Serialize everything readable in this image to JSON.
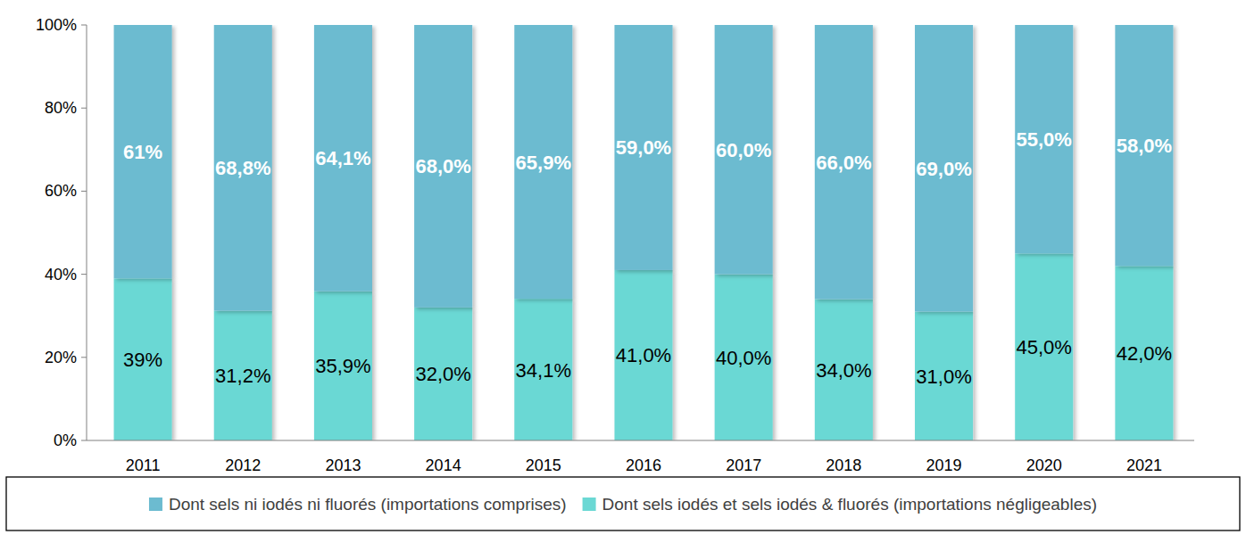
{
  "chart_data": {
    "type": "bar",
    "stacked": true,
    "data_labels": true,
    "grid": false,
    "legend": "bottom",
    "categories": [
      "2011",
      "2012",
      "2013",
      "2014",
      "2015",
      "2016",
      "2017",
      "2018",
      "2019",
      "2020",
      "2021"
    ],
    "series": [
      {
        "name": "Dont sels ni iodés ni fluorés (importations comprises)",
        "color": "#6cbbd0",
        "values": [
          61,
          68.8,
          64.1,
          68,
          65.9,
          59,
          60,
          66,
          69,
          55,
          58
        ],
        "value_labels": [
          "61%",
          "68,8%",
          "64,1%",
          "68,0%",
          "65,9%",
          "59,0%",
          "60,0%",
          "66,0%",
          "69,0%",
          "55,0%",
          "58,0%"
        ]
      },
      {
        "name": "Dont sels iodés et sels iodés & fluorés (importations négligeables)",
        "color": "#6bd8d4",
        "values": [
          39,
          31.2,
          35.9,
          32,
          34.1,
          41,
          40,
          34,
          31,
          45,
          42
        ],
        "value_labels": [
          "39%",
          "31,2%",
          "35,9%",
          "32,0%",
          "34,1%",
          "41,0%",
          "40,0%",
          "34,0%",
          "31,0%",
          "45,0%",
          "42,0%"
        ]
      }
    ],
    "ylim": [
      0,
      100
    ],
    "yticks": [
      {
        "value": 0,
        "label": "0%"
      },
      {
        "value": 20,
        "label": "20%"
      },
      {
        "value": 40,
        "label": "40%"
      },
      {
        "value": 60,
        "label": "60%"
      },
      {
        "value": 80,
        "label": "80%"
      },
      {
        "value": 100,
        "label": "100%"
      }
    ]
  }
}
